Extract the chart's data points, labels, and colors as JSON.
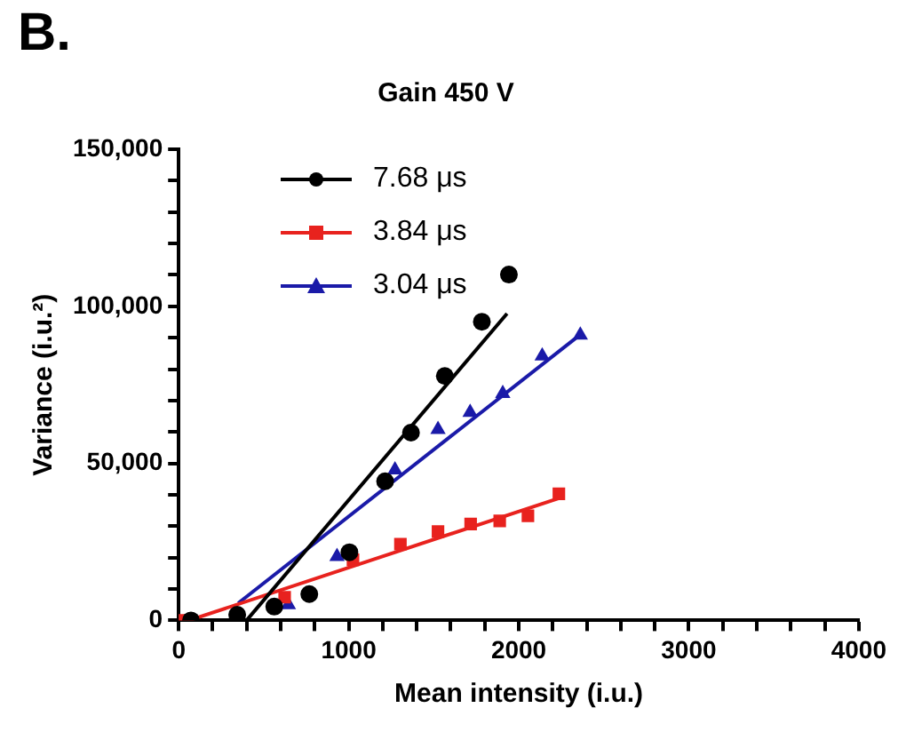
{
  "chart_data": {
    "type": "scatter",
    "title": "Gain 450 V",
    "xlabel": "Mean intensity (i.u.)",
    "ylabel": "Variance (i.u.²)",
    "annotations": [
      "B."
    ],
    "xlim": [
      0,
      4000
    ],
    "xticks": [
      0,
      {
        "value": 200,
        "label": null
      },
      {
        "value": 400,
        "label": null
      },
      {
        "value": 600,
        "label": null
      },
      {
        "value": 800,
        "label": null
      },
      1000,
      {
        "value": 1200,
        "label": null
      },
      {
        "value": 1400,
        "label": null
      },
      {
        "value": 1600,
        "label": null
      },
      {
        "value": 1800,
        "label": null
      },
      2000,
      {
        "value": 2200,
        "label": null
      },
      {
        "value": 2400,
        "label": null
      },
      {
        "value": 2600,
        "label": null
      },
      {
        "value": 2800,
        "label": null
      },
      3000,
      {
        "value": 3200,
        "label": null
      },
      {
        "value": 3400,
        "label": null
      },
      {
        "value": 3600,
        "label": null
      },
      {
        "value": 3800,
        "label": null
      },
      4000
    ],
    "ylim": [
      0,
      150000
    ],
    "yticks": [
      {
        "value": 0,
        "label": "0"
      },
      {
        "value": 10000,
        "label": null
      },
      {
        "value": 20000,
        "label": null
      },
      {
        "value": 30000,
        "label": null
      },
      {
        "value": 40000,
        "label": null
      },
      {
        "value": 50000,
        "label": "50,000"
      },
      {
        "value": 60000,
        "label": null
      },
      {
        "value": 70000,
        "label": null
      },
      {
        "value": 80000,
        "label": null
      },
      {
        "value": 90000,
        "label": null
      },
      {
        "value": 100000,
        "label": "100,000"
      },
      {
        "value": 110000,
        "label": null
      },
      {
        "value": 120000,
        "label": null
      },
      {
        "value": 130000,
        "label": null
      },
      {
        "value": 140000,
        "label": null
      },
      {
        "value": 150000,
        "label": "150,000"
      }
    ],
    "grid": false,
    "legend": "top left",
    "series": [
      {
        "name": "7.68 μs",
        "type": "scatter",
        "marker": "circle",
        "color": "#000000",
        "x": [
          72,
          344,
          562,
          768,
          1004,
          1214,
          1366,
          1565,
          1783,
          1942
        ],
        "values": [
          0,
          1800,
          4400,
          8400,
          21700,
          44300,
          59800,
          77800,
          95100,
          110100
        ]
      },
      {
        "name": "3.84 μs",
        "type": "scatter",
        "marker": "square",
        "color": "#e8221e",
        "x": [
          25,
          623,
          1025,
          1304,
          1525,
          1717,
          1888,
          2054,
          2236
        ],
        "values": [
          0,
          7400,
          19300,
          24300,
          28300,
          30700,
          31700,
          33300,
          40300
        ]
      },
      {
        "name": "3.04 μs",
        "type": "scatter",
        "marker": "triangle",
        "color": "#1a1aa8",
        "x": [
          645,
          931,
          1272,
          1525,
          1714,
          1906,
          2138,
          2362
        ],
        "values": [
          5000,
          20300,
          47900,
          60800,
          66200,
          72200,
          84200,
          90800
        ]
      },
      {
        "type": "line",
        "marker": "none",
        "color": "#000000",
        "x": [
          399,
          1931
        ],
        "values": [
          0,
          97700
        ]
      },
      {
        "type": "line",
        "marker": "none",
        "color": "#e8221e",
        "x": [
          60,
          2236
        ],
        "values": [
          0,
          38900
        ]
      },
      {
        "type": "line",
        "marker": "none",
        "color": "#1a1aa8",
        "x": [
          350,
          2362
        ],
        "values": [
          5500,
          91000
        ]
      }
    ]
  }
}
